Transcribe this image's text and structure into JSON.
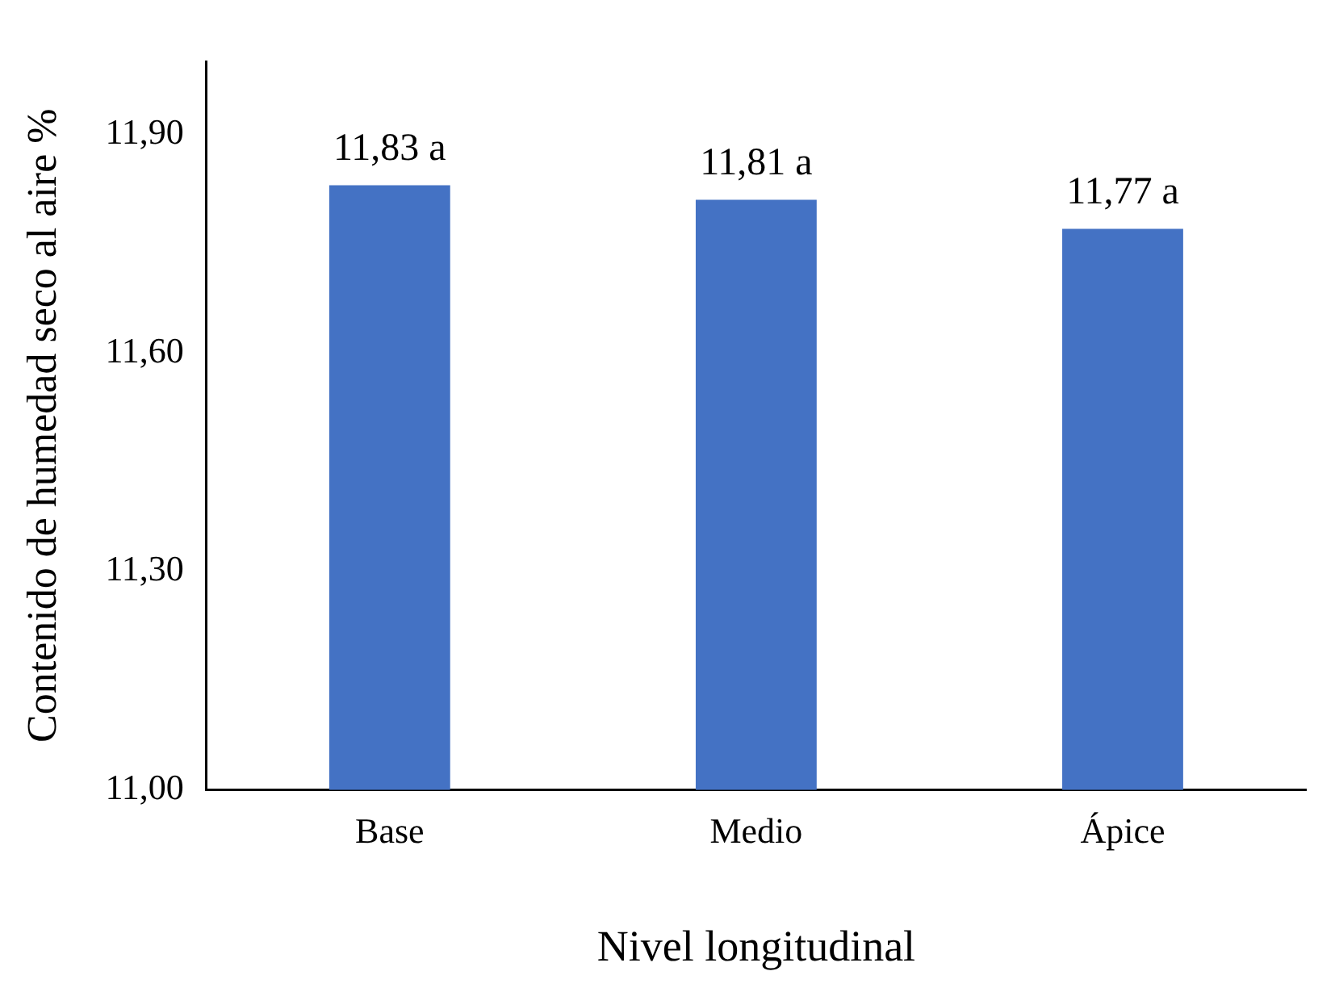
{
  "chart_data": {
    "type": "bar",
    "xlabel": "Nivel longitudinal",
    "ylabel": "Contenido de humedad seco al aire %",
    "categories": [
      "Base",
      "Medio",
      "Ápice"
    ],
    "values": [
      11.83,
      11.81,
      11.77
    ],
    "value_labels": [
      "11,83 a",
      "11,81 a",
      "11,77 a"
    ],
    "color": "#4472c4",
    "ylim": [
      11,
      12
    ],
    "yticks": [
      {
        "value": 11,
        "label": "11,00"
      },
      {
        "value": 11.3,
        "label": "11,30"
      },
      {
        "value": 11.6,
        "label": "11,60"
      },
      {
        "value": 11.9,
        "label": "11,90"
      }
    ],
    "grid": false,
    "legend": false
  }
}
